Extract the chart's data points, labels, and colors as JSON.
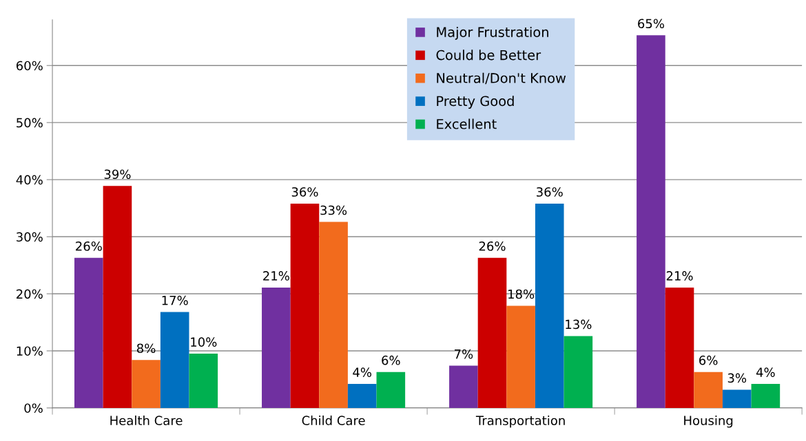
{
  "chart_data": {
    "type": "bar",
    "categories": [
      "Health Care",
      "Child Care",
      "Transportation",
      "Housing"
    ],
    "series": [
      {
        "name": "Major Frustration",
        "color": "#7030a0",
        "values": [
          26.3,
          21.1,
          7.4,
          65.3
        ],
        "value_labels": [
          "26%",
          "21%",
          "7%",
          "65%"
        ]
      },
      {
        "name": "Could be Better",
        "color": "#cc0000",
        "values": [
          38.9,
          35.8,
          26.3,
          21.1
        ],
        "value_labels": [
          "39%",
          "36%",
          "26%",
          "21%"
        ]
      },
      {
        "name": "Neutral/Don't Know",
        "color": "#f26b1d",
        "values": [
          8.4,
          32.6,
          17.9,
          6.3
        ],
        "value_labels": [
          "8%",
          "33%",
          "18%",
          "6%"
        ]
      },
      {
        "name": "Pretty Good",
        "color": "#0070c0",
        "values": [
          16.8,
          4.2,
          35.8,
          3.2
        ],
        "value_labels": [
          "17%",
          "4%",
          "36%",
          "3%"
        ]
      },
      {
        "name": "Excellent",
        "color": "#00b050",
        "values": [
          9.5,
          6.3,
          12.6,
          4.2
        ],
        "value_labels": [
          "10%",
          "6%",
          "13%",
          "4%"
        ]
      }
    ],
    "ylim": [
      0,
      68
    ],
    "yticks": [
      {
        "value": 0,
        "label": "0%"
      },
      {
        "value": 10,
        "label": "10%"
      },
      {
        "value": 20,
        "label": "20%"
      },
      {
        "value": 30,
        "label": "30%"
      },
      {
        "value": 40,
        "label": "40%"
      },
      {
        "value": 50,
        "label": "50%"
      },
      {
        "value": 60,
        "label": "60%"
      }
    ],
    "grid": "y",
    "legend": "top"
  }
}
